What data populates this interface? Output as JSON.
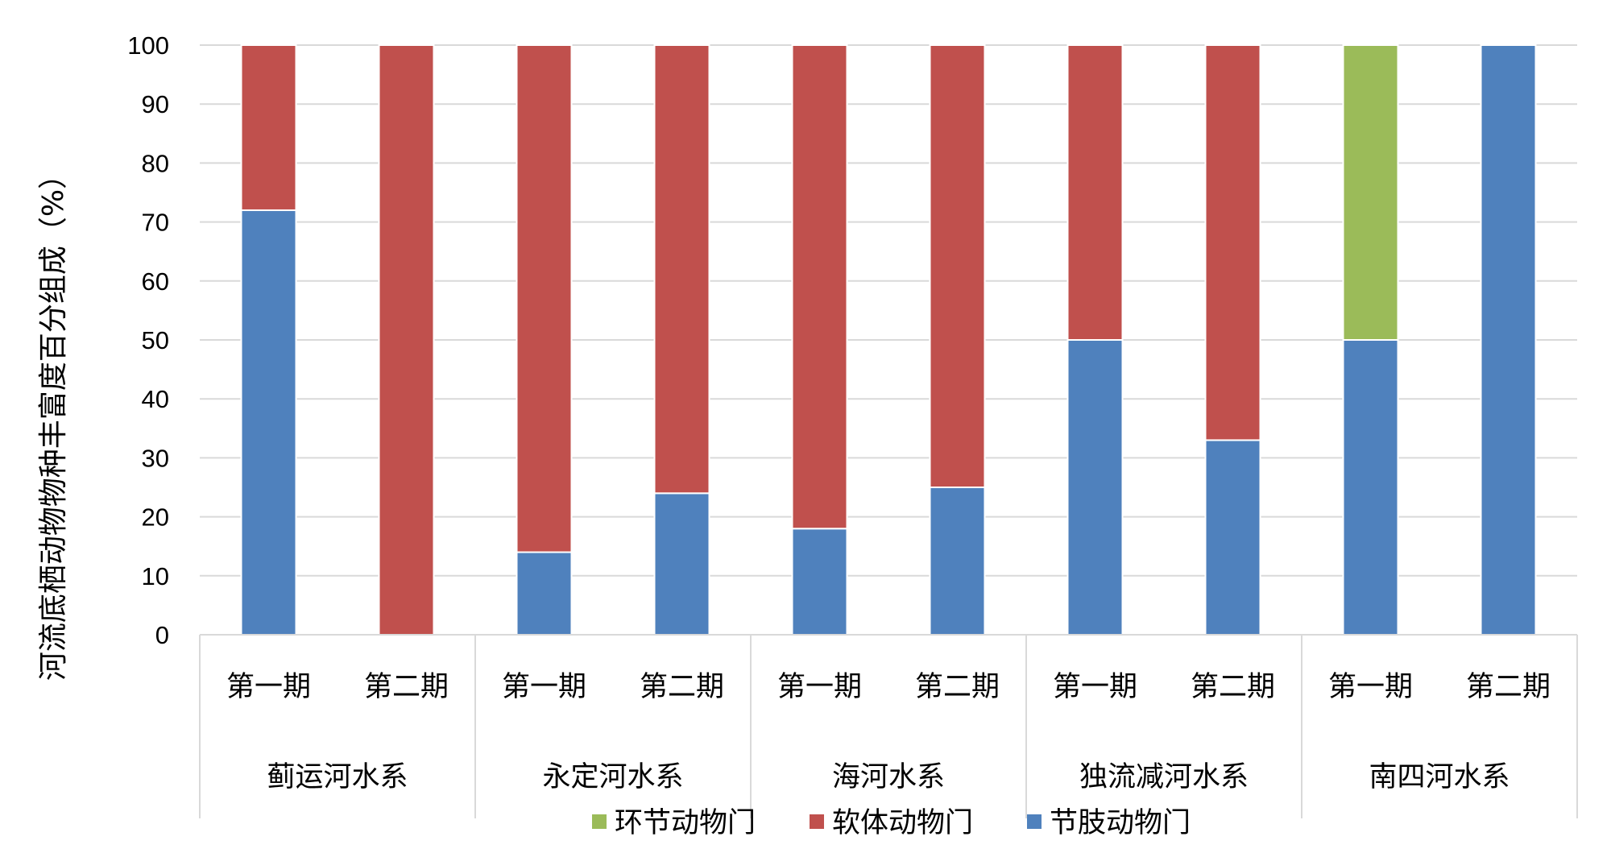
{
  "chart_data": {
    "type": "bar",
    "stacked": true,
    "ylabel": "河流底栖动物物种丰富度百分组成（%）",
    "ylim": [
      0,
      100
    ],
    "y_ticks": [
      0,
      10,
      20,
      30,
      40,
      50,
      60,
      70,
      80,
      90,
      100
    ],
    "grid": true,
    "legend_position": "bottom",
    "groups": [
      {
        "name": "蓟运河水系",
        "periods": [
          "第一期",
          "第二期"
        ]
      },
      {
        "name": "永定河水系",
        "periods": [
          "第一期",
          "第二期"
        ]
      },
      {
        "name": "海河水系",
        "periods": [
          "第一期",
          "第二期"
        ]
      },
      {
        "name": "独流减河水系",
        "periods": [
          "第一期",
          "第二期"
        ]
      },
      {
        "name": "南四河水系",
        "periods": [
          "第一期",
          "第二期"
        ]
      }
    ],
    "series": [
      {
        "name": "节肢动物门",
        "color": "#4F81BD",
        "values": [
          72,
          0,
          14,
          24,
          18,
          25,
          50,
          33,
          50,
          100
        ]
      },
      {
        "name": "软体动物门",
        "color": "#C0504D",
        "values": [
          28,
          100,
          86,
          76,
          82,
          75,
          50,
          67,
          0,
          0
        ]
      },
      {
        "name": "环节动物门",
        "color": "#9BBB59",
        "values": [
          0,
          0,
          0,
          0,
          0,
          0,
          0,
          0,
          50,
          0
        ]
      }
    ],
    "legend_order": [
      "环节动物门",
      "软体动物门",
      "节肢动物门"
    ]
  }
}
